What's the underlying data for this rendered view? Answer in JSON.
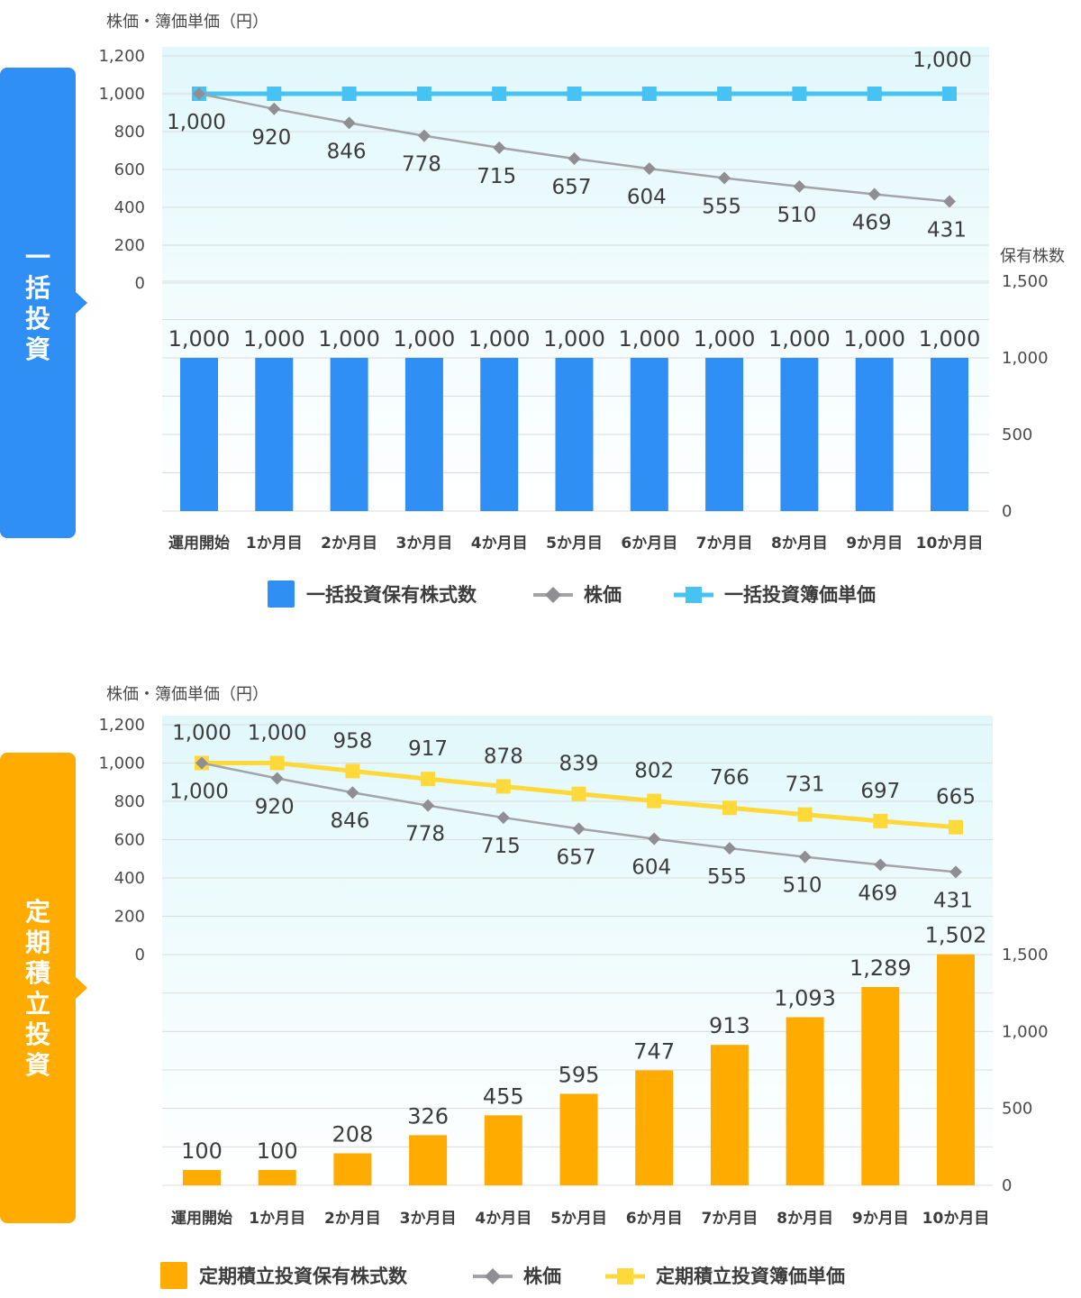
{
  "categories": [
    "運用開始",
    "1か月目",
    "2か月目",
    "3か月目",
    "4か月目",
    "5か月目",
    "6か月目",
    "7か月目",
    "8か月目",
    "9か月目",
    "10か月目"
  ],
  "colors": {
    "lump_bar": "#2f8ff5",
    "lump_book": "#47c3f3",
    "periodic": "#ffab00",
    "periodic_book": "#ffd939",
    "price": "#a3a3a8",
    "price_marker": "#8e8e93",
    "grid": "#dcdcdc",
    "bg_top": "#e1f8fb",
    "bg_bottom": "#ffffff"
  },
  "chart_data": [
    {
      "id": "lump",
      "type": "bar+line",
      "side_label": "一括投資",
      "price_axis_title": "株価・簿価単価（円）",
      "shares_axis_title": "保有株数",
      "price_ticks": [
        "1,200",
        "1,000",
        "800",
        "600",
        "400",
        "200",
        "0"
      ],
      "shares_ticks": [
        "1,500",
        "1,000",
        "500",
        "0"
      ],
      "price_ylim": [
        0,
        1200
      ],
      "shares_ylim": [
        0,
        1500
      ],
      "categories": [
        "運用開始",
        "1か月目",
        "2か月目",
        "3か月目",
        "4か月目",
        "5か月目",
        "6か月目",
        "7か月目",
        "8か月目",
        "9か月目",
        "10か月目"
      ],
      "bars": {
        "name": "一括投資保有株式数",
        "values": [
          1000,
          1000,
          1000,
          1000,
          1000,
          1000,
          1000,
          1000,
          1000,
          1000,
          1000
        ],
        "labels": [
          "1,000",
          "1,000",
          "1,000",
          "1,000",
          "1,000",
          "1,000",
          "1,000",
          "1,000",
          "1,000",
          "1,000",
          "1,000"
        ]
      },
      "price": {
        "name": "株価",
        "values": [
          1000,
          920,
          846,
          778,
          715,
          657,
          604,
          555,
          510,
          469,
          431
        ],
        "labels": [
          "1,000",
          "920",
          "846",
          "778",
          "715",
          "657",
          "604",
          "555",
          "510",
          "469",
          "431"
        ]
      },
      "book": {
        "name": "一括投資簿価単価",
        "values": [
          1000,
          1000,
          1000,
          1000,
          1000,
          1000,
          1000,
          1000,
          1000,
          1000,
          1000
        ],
        "labels": [
          "",
          "",
          "",
          "",
          "",
          "",
          "",
          "",
          "",
          "",
          "1,000"
        ]
      },
      "legend": [
        "一括投資保有株式数",
        "株価",
        "一括投資簿価単価"
      ]
    },
    {
      "id": "periodic",
      "type": "bar+line",
      "side_label": "定期積立投資",
      "price_axis_title": "株価・簿価単価（円）",
      "price_ticks": [
        "1,200",
        "1,000",
        "800",
        "600",
        "400",
        "200",
        "0"
      ],
      "shares_ticks": [
        "1,500",
        "1,000",
        "500",
        "0"
      ],
      "price_ylim": [
        0,
        1200
      ],
      "shares_ylim": [
        0,
        1500
      ],
      "categories": [
        "運用開始",
        "1か月目",
        "2か月目",
        "3か月目",
        "4か月目",
        "5か月目",
        "6か月目",
        "7か月目",
        "8か月目",
        "9か月目",
        "10か月目"
      ],
      "bars": {
        "name": "定期積立投資保有株式数",
        "values": [
          100,
          100,
          208,
          326,
          455,
          595,
          747,
          913,
          1093,
          1289,
          1502
        ],
        "labels": [
          "100",
          "100",
          "208",
          "326",
          "455",
          "595",
          "747",
          "913",
          "1,093",
          "1,289",
          "1,502"
        ]
      },
      "price": {
        "name": "株価",
        "values": [
          1000,
          920,
          846,
          778,
          715,
          657,
          604,
          555,
          510,
          469,
          431
        ],
        "labels": [
          "1,000",
          "920",
          "846",
          "778",
          "715",
          "657",
          "604",
          "555",
          "510",
          "469",
          "431"
        ]
      },
      "book": {
        "name": "定期積立投資簿価単価",
        "values": [
          1000,
          1000,
          958,
          917,
          878,
          839,
          802,
          766,
          731,
          697,
          665
        ],
        "labels": [
          "1,000",
          "1,000",
          "958",
          "917",
          "878",
          "839",
          "802",
          "766",
          "731",
          "697",
          "665"
        ]
      },
      "legend": [
        "定期積立投資保有株式数",
        "株価",
        "定期積立投資簿価単価"
      ]
    }
  ]
}
